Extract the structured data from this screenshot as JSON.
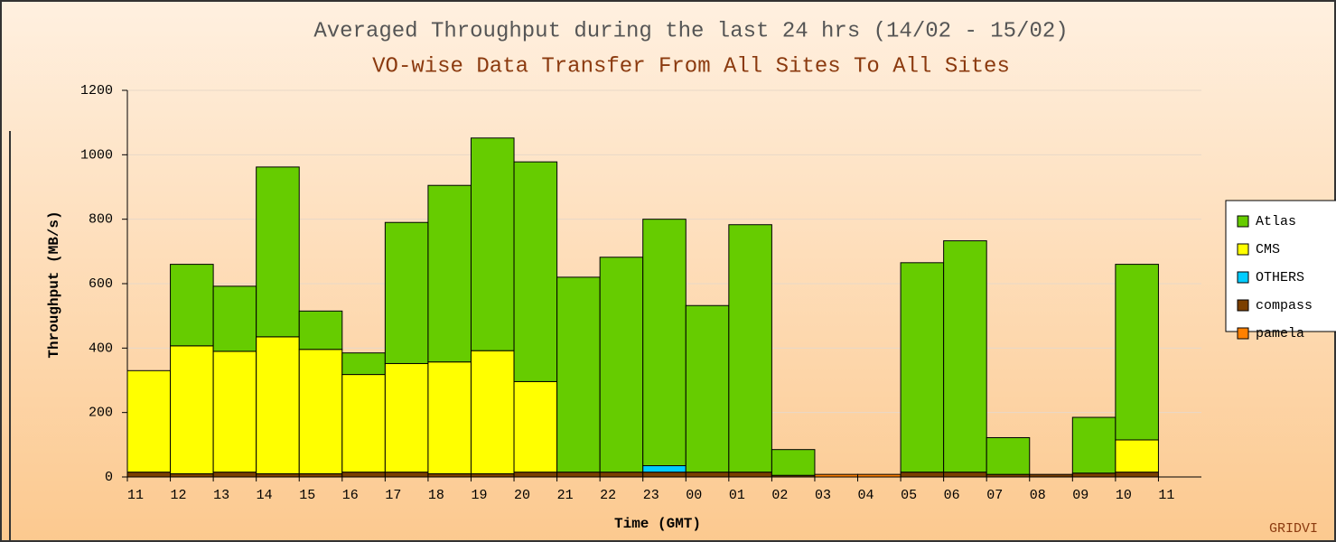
{
  "chart_data": {
    "type": "stacked-bar",
    "title": "Averaged Throughput during the last 24 hrs (14/02 - 15/02)",
    "subtitle": "VO-wise Data Transfer From All Sites To All Sites",
    "y_label": "Throughput (MB/s)",
    "x_label": "Time (GMT)",
    "watermark": "GRIDVI",
    "categories": [
      "11",
      "12",
      "13",
      "14",
      "15",
      "16",
      "17",
      "18",
      "19",
      "20",
      "21",
      "22",
      "23",
      "00",
      "01",
      "02",
      "03",
      "04",
      "05",
      "06",
      "07",
      "08",
      "09",
      "10",
      "11"
    ],
    "series": [
      {
        "name": "Atlas",
        "color": "#66cc00",
        "values": [
          0,
          253,
          202,
          527,
          119,
          67,
          438,
          548,
          660,
          682,
          605,
          667,
          765,
          517,
          768,
          80,
          0,
          0,
          650,
          718,
          114,
          0,
          173,
          545,
          null
        ]
      },
      {
        "name": "CMS",
        "color": "#ffff00",
        "values": [
          315,
          397,
          375,
          425,
          386,
          303,
          337,
          347,
          382,
          281,
          0,
          0,
          0,
          0,
          0,
          0,
          0,
          0,
          0,
          0,
          0,
          0,
          0,
          100,
          null
        ]
      },
      {
        "name": "OTHERS",
        "color": "#00ccff",
        "values": [
          0,
          0,
          0,
          0,
          0,
          0,
          0,
          0,
          0,
          0,
          0,
          0,
          20,
          0,
          0,
          0,
          0,
          0,
          0,
          0,
          0,
          0,
          0,
          0,
          null
        ]
      },
      {
        "name": "compass",
        "color": "#7b3f00",
        "values": [
          15,
          10,
          15,
          10,
          10,
          15,
          15,
          10,
          10,
          15,
          15,
          15,
          15,
          15,
          15,
          5,
          0,
          0,
          15,
          15,
          8,
          8,
          12,
          15,
          null
        ]
      },
      {
        "name": "pamela",
        "color": "#ff8000",
        "values": [
          0,
          0,
          0,
          0,
          0,
          0,
          0,
          0,
          0,
          0,
          0,
          0,
          0,
          0,
          0,
          0,
          8,
          8,
          0,
          0,
          0,
          0,
          0,
          0,
          null
        ]
      }
    ],
    "ylim": [
      0,
      1200
    ],
    "yticks": [
      0,
      200,
      400,
      600,
      800,
      1000,
      1200
    ],
    "grid": true
  }
}
